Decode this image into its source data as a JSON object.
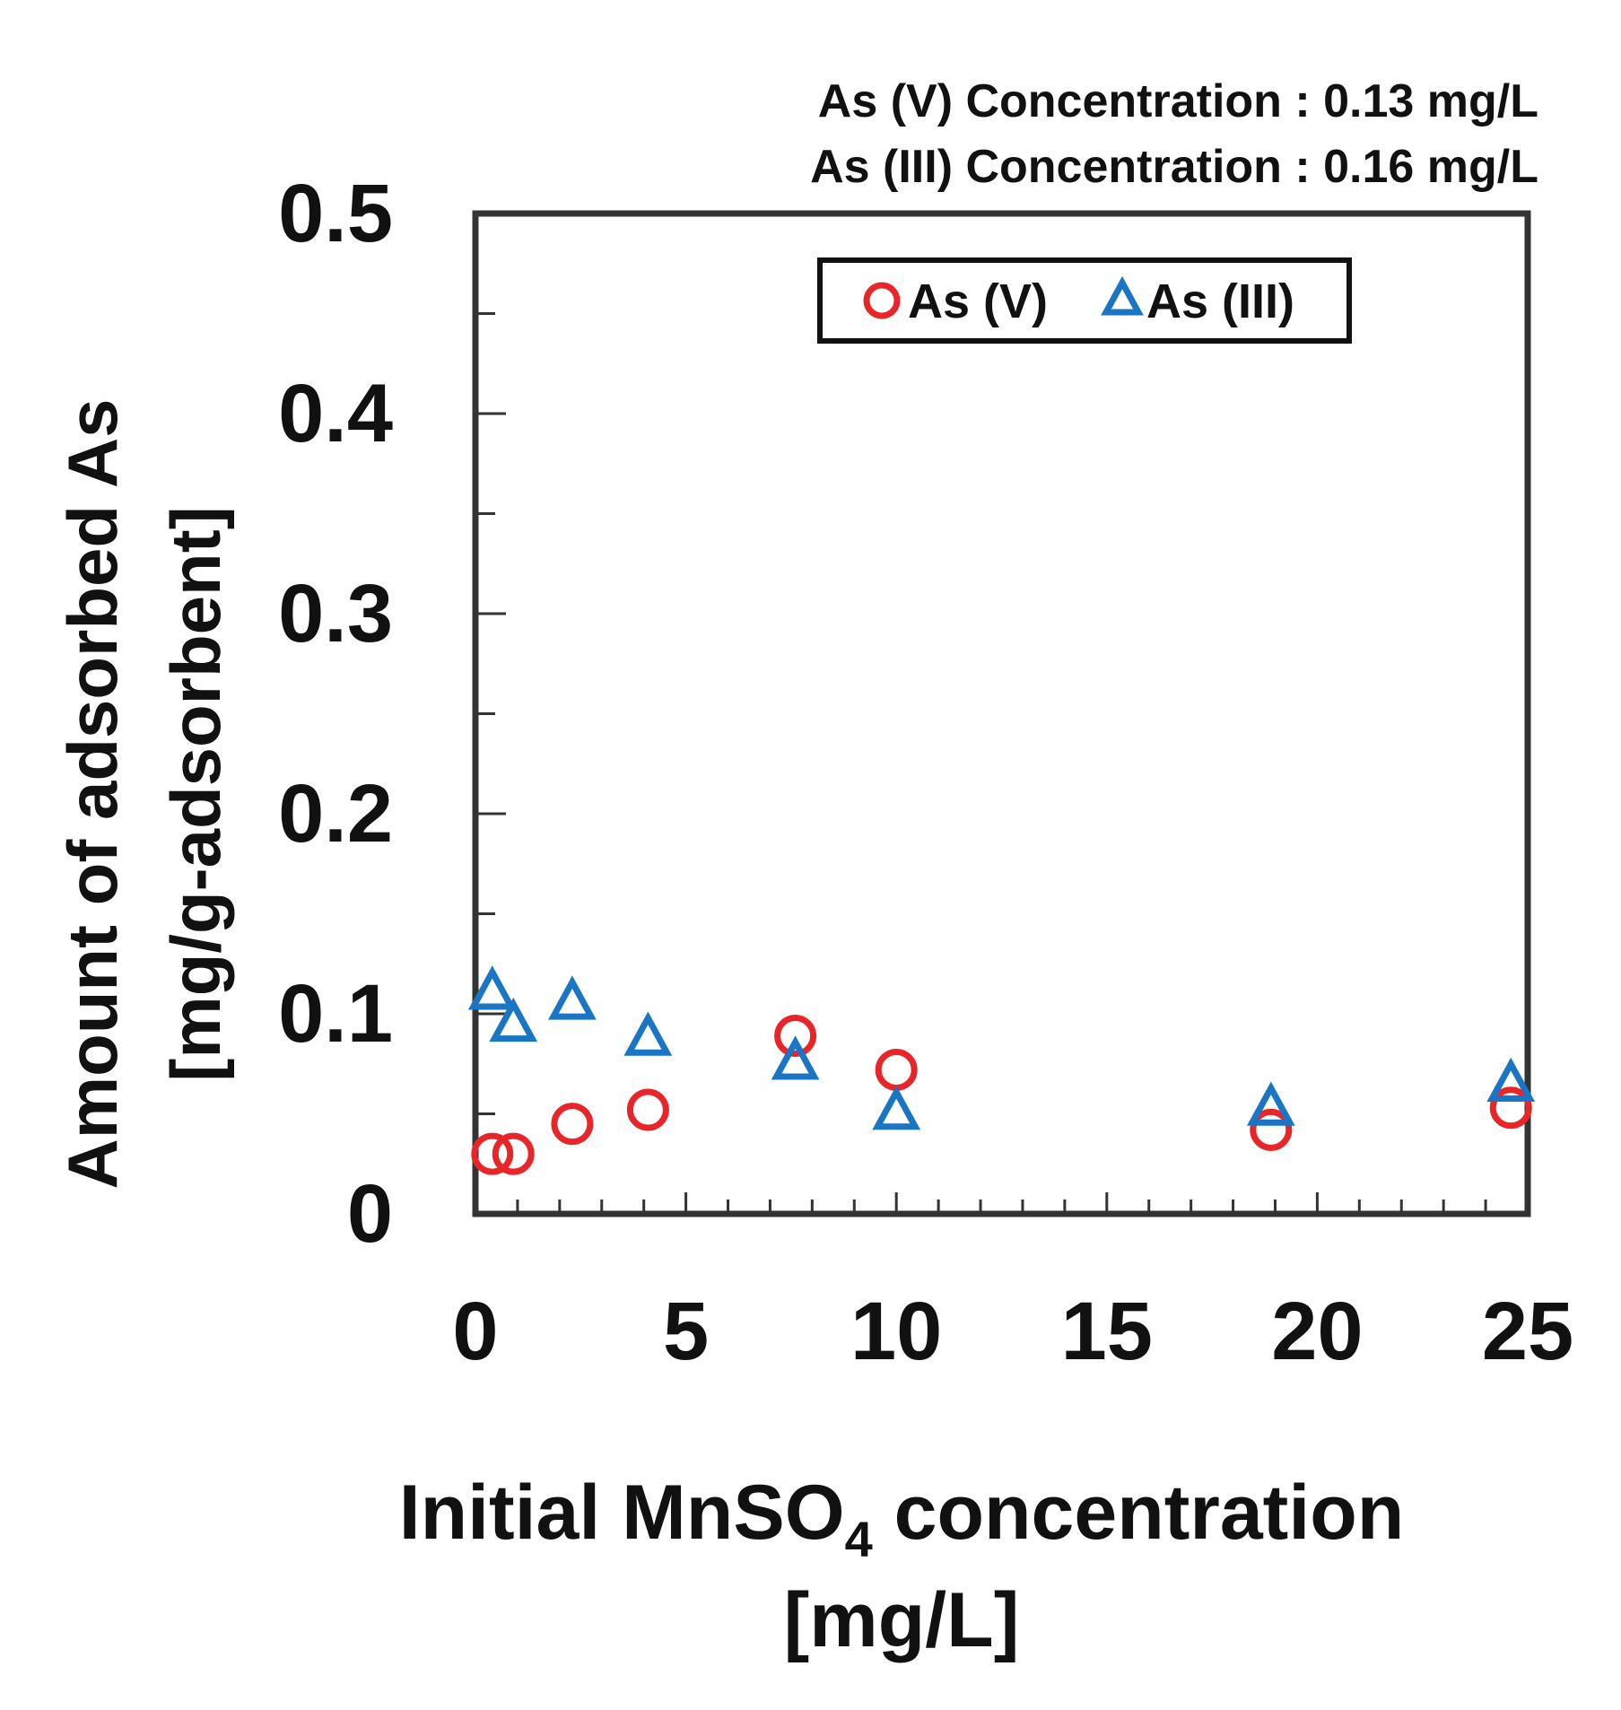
{
  "chart_data": {
    "type": "scatter",
    "title": "",
    "annotations": [
      "As (V) Concentration : 0.13 mg/L",
      "As (III) Concentration : 0.16 mg/L"
    ],
    "xlabel": {
      "line1_pre": "Initial MnSO",
      "line1_sub": "4",
      "line1_post": " concentration",
      "line2": "[mg/L]"
    },
    "ylabel": {
      "line1": "Amount of adsorbed As",
      "line2": "[mg/g-adsorbent]"
    },
    "xlim": [
      0,
      25
    ],
    "ylim": [
      0,
      0.5
    ],
    "xticks": [
      0,
      5,
      10,
      15,
      20,
      25
    ],
    "xtick_labels": [
      "0",
      "5",
      "10",
      "15",
      "20",
      "25"
    ],
    "yticks": [
      0,
      0.1,
      0.2,
      0.3,
      0.4,
      0.5
    ],
    "ytick_labels": [
      "0",
      "0.1",
      "0.2",
      "0.3",
      "0.4",
      "0.5"
    ],
    "x_minor_step": 1,
    "y_minor_step": 0.05,
    "legend_position": "top-right",
    "series": [
      {
        "name": "As (V)",
        "marker": "circle",
        "color": "#e8262a",
        "x": [
          0.4,
          0.9,
          2.3,
          4.1,
          7.6,
          10.0,
          18.9,
          24.6
        ],
        "y": [
          0.03,
          0.03,
          0.045,
          0.052,
          0.089,
          0.072,
          0.042,
          0.053
        ]
      },
      {
        "name": "As (III)",
        "marker": "triangle",
        "color": "#1a76c4",
        "x": [
          0.4,
          0.9,
          2.3,
          4.1,
          7.6,
          10.0,
          18.9,
          24.6
        ],
        "y": [
          0.111,
          0.095,
          0.106,
          0.088,
          0.076,
          0.051,
          0.053,
          0.065
        ]
      }
    ]
  }
}
